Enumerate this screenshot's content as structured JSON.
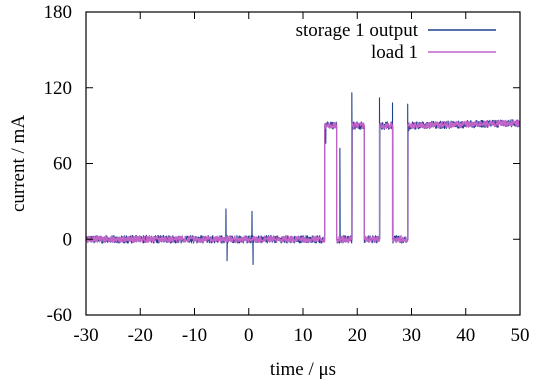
{
  "chart_data": {
    "type": "line",
    "xlabel": "time /   μs",
    "ylabel": "current / mA",
    "xlim": [
      -30,
      50
    ],
    "ylim": [
      -60,
      180
    ],
    "xticks": [
      -30,
      -20,
      -10,
      0,
      10,
      20,
      30,
      40,
      50
    ],
    "yticks": [
      -60,
      0,
      60,
      120,
      180
    ],
    "grid": false,
    "legend_position": "top-right",
    "series": [
      {
        "name": "storage 1 output",
        "color": "#1f3f8f",
        "noise_mA": 3,
        "x": [
          -30,
          14,
          14,
          16.2,
          16.2,
          19,
          19,
          21.3,
          21.3,
          24.1,
          24.1,
          26.5,
          26.5,
          29.3,
          29.3,
          50
        ],
        "y": [
          0,
          0,
          90,
          90,
          0,
          0,
          90,
          90,
          0,
          0,
          90,
          90,
          0,
          0,
          90,
          92
        ],
        "spikes": [
          {
            "x": -4.2,
            "y": 24
          },
          {
            "x": -4.0,
            "y": -17
          },
          {
            "x": 0.6,
            "y": 22
          },
          {
            "x": 0.8,
            "y": -20
          },
          {
            "x": 19.0,
            "y": 116
          },
          {
            "x": 16.8,
            "y": 72
          },
          {
            "x": 24.1,
            "y": 112
          },
          {
            "x": 26.5,
            "y": 108
          },
          {
            "x": 29.3,
            "y": 107
          },
          {
            "x": 29.5,
            "y": 86
          },
          {
            "x": 14.2,
            "y": 76
          }
        ]
      },
      {
        "name": "load 1",
        "color": "#c264c8",
        "noise_mA": 2.5,
        "x": [
          -30,
          14,
          14,
          16.2,
          16.2,
          19,
          19,
          21.3,
          21.3,
          24.1,
          24.1,
          26.5,
          26.5,
          29.3,
          29.3,
          50
        ],
        "y": [
          0,
          0,
          90,
          90,
          0,
          0,
          90,
          90,
          0,
          0,
          90,
          90,
          0,
          0,
          90,
          92
        ],
        "spikes": []
      }
    ]
  }
}
